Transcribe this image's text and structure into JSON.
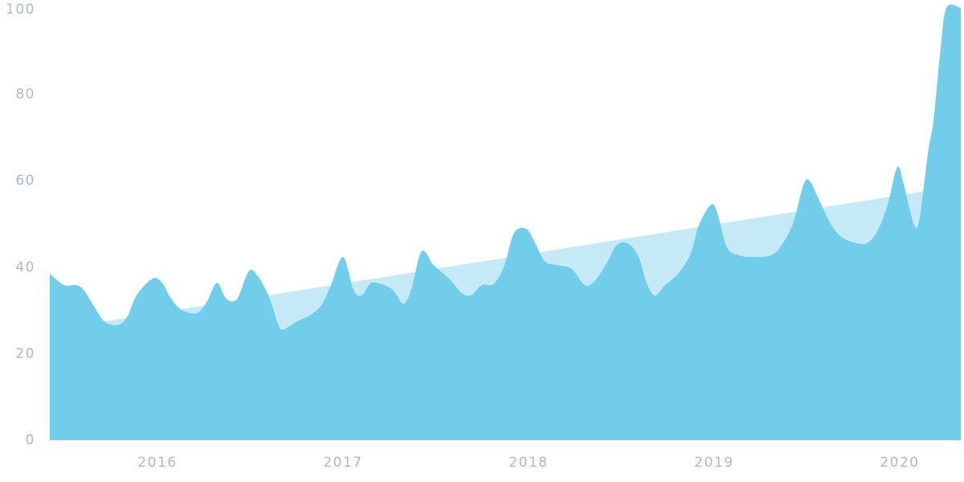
{
  "chart_data": {
    "type": "area",
    "x": [
      2015.42,
      2015.498,
      2015.563,
      2015.606,
      2015.662,
      2015.714,
      2015.779,
      2015.835,
      2015.887,
      2015.974,
      2016.026,
      2016.069,
      2016.126,
      2016.212,
      2016.268,
      2016.32,
      2016.372,
      2016.429,
      2016.494,
      2016.545,
      2016.602,
      2016.645,
      2016.675,
      2016.753,
      2016.818,
      2016.883,
      2016.935,
      2017.0,
      2017.056,
      2017.1,
      2017.152,
      2017.221,
      2017.273,
      2017.325,
      2017.368,
      2017.424,
      2017.489,
      2017.576,
      2017.641,
      2017.693,
      2017.749,
      2017.814,
      2017.87,
      2017.922,
      2017.987,
      2018.03,
      2018.087,
      2018.16,
      2018.234,
      2018.303,
      2018.355,
      2018.42,
      2018.476,
      2018.537,
      2018.593,
      2018.636,
      2018.68,
      2018.736,
      2018.81,
      2018.874,
      2018.918,
      2018.983,
      2019.017,
      2019.069,
      2019.134,
      2019.199,
      2019.307,
      2019.372,
      2019.429,
      2019.481,
      2019.515,
      2019.567,
      2019.632,
      2019.697,
      2019.784,
      2019.827,
      2019.879,
      2019.935,
      2019.987,
      2020.022,
      2020.078,
      2020.108,
      2020.152,
      2020.182,
      2020.216,
      2020.251,
      2020.329
    ],
    "values": [
      38.5,
      35.9,
      35.9,
      34.6,
      30.7,
      27.5,
      26.6,
      28.4,
      33.5,
      37.4,
      36.4,
      33.1,
      30.3,
      29.4,
      32.2,
      36.4,
      32.7,
      32.7,
      39.2,
      37.7,
      33.1,
      27.5,
      25.6,
      27.5,
      28.8,
      31.2,
      35.9,
      42.4,
      34.9,
      33.5,
      36.4,
      35.9,
      34.6,
      31.6,
      34.9,
      43.7,
      40.5,
      37.2,
      34.0,
      33.6,
      35.9,
      36.2,
      40.5,
      48.0,
      48.9,
      46.1,
      41.4,
      40.5,
      39.6,
      35.9,
      36.8,
      40.9,
      45.2,
      45.5,
      42.4,
      36.4,
      33.5,
      35.9,
      38.7,
      43.3,
      49.8,
      54.5,
      52.6,
      44.6,
      42.8,
      42.4,
      42.8,
      45.7,
      50.7,
      59.1,
      60.0,
      55.4,
      49.8,
      46.7,
      45.5,
      45.7,
      48.3,
      54.5,
      63.2,
      59.1,
      49.8,
      51.7,
      66.5,
      74.0,
      88.8,
      100,
      100
    ],
    "color": "#72cdea",
    "trend": {
      "x": [
        2015.714,
        2020.13
      ],
      "values": [
        27.5,
        57.6
      ],
      "color": "#c5e9f6"
    },
    "xlim": [
      2015.42,
      2020.329
    ],
    "xticks": [
      2016,
      2017,
      2018,
      2019,
      2020
    ],
    "ylim": [
      0,
      100
    ],
    "yticks": [
      0,
      20,
      40,
      60,
      80,
      100
    ],
    "grid": false
  }
}
